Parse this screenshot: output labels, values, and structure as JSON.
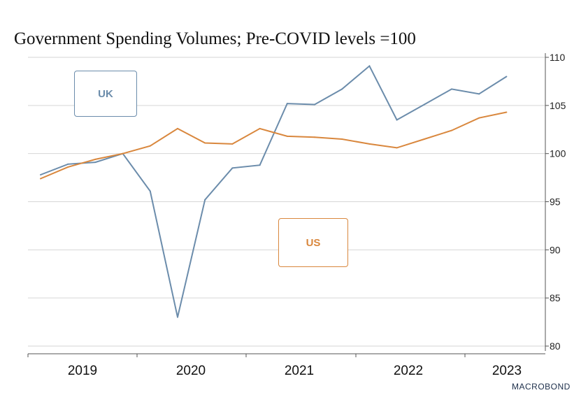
{
  "chart_data": {
    "type": "line",
    "title": "Government Spending Volumes; Pre-COVID levels =100",
    "ylim": [
      80,
      110
    ],
    "y_ticks": [
      "110",
      "105",
      "100",
      "95",
      "90",
      "85",
      "80"
    ],
    "x_ticks": [
      "2019",
      "2020",
      "2021",
      "2022",
      "2023"
    ],
    "grid": true,
    "y_axis_side": "right",
    "x": [
      "2019Q1",
      "2019Q2",
      "2019Q3",
      "2019Q4",
      "2020Q1",
      "2020Q2",
      "2020Q3",
      "2020Q4",
      "2021Q1",
      "2021Q2",
      "2021Q3",
      "2021Q4",
      "2022Q1",
      "2022Q2",
      "2022Q3",
      "2022Q4",
      "2023Q1",
      "2023Q2"
    ],
    "series": [
      {
        "name": "UK",
        "color": "#6b8cab",
        "values": [
          97.8,
          98.9,
          99.1,
          100.0,
          96.1,
          83.0,
          95.2,
          98.5,
          98.8,
          105.2,
          105.1,
          106.7,
          109.1,
          103.5,
          105.1,
          106.7,
          106.2,
          108.0
        ]
      },
      {
        "name": "US",
        "color": "#d9873d",
        "values": [
          97.4,
          98.6,
          99.4,
          100.0,
          100.8,
          102.6,
          101.1,
          101.0,
          102.6,
          101.8,
          101.7,
          101.5,
          101.0,
          100.6,
          101.5,
          102.4,
          103.7,
          104.3
        ]
      }
    ],
    "legend": {
      "uk_label": "UK",
      "us_label": "US"
    },
    "source": "MACROBOND"
  }
}
